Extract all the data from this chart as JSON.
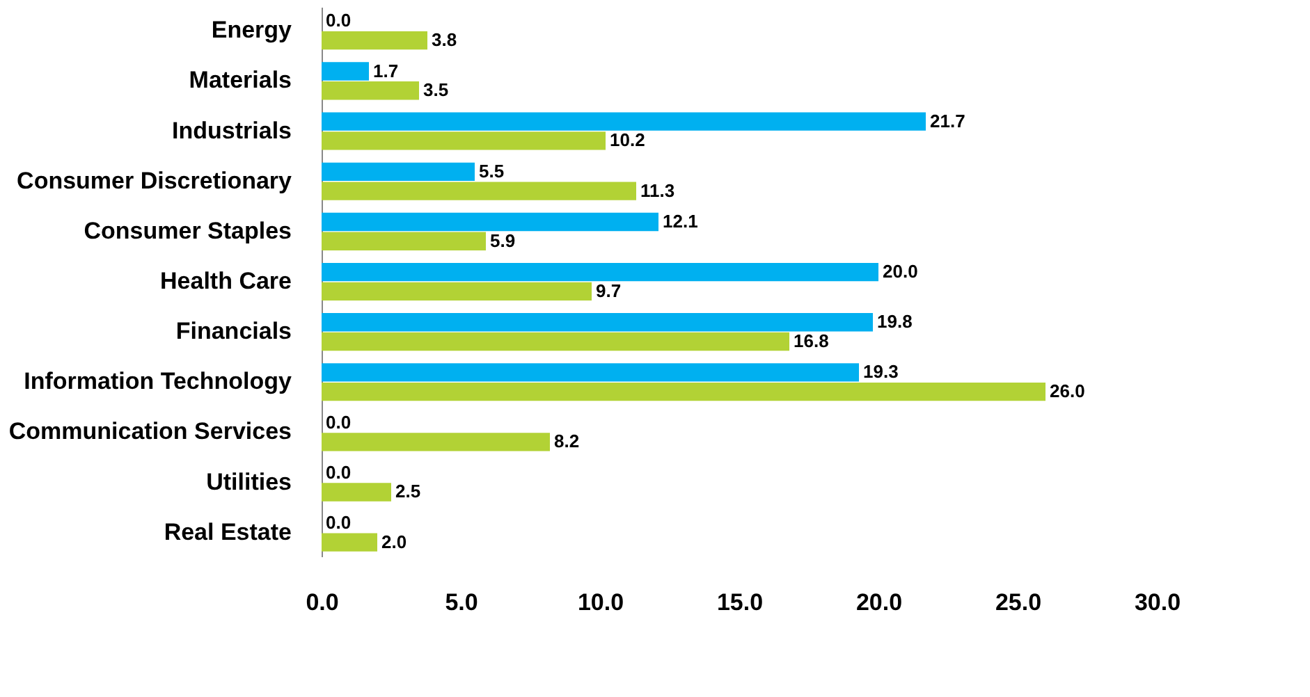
{
  "chart_data": {
    "type": "bar",
    "orientation": "horizontal",
    "categories": [
      "Energy",
      "Materials",
      "Industrials",
      "Consumer Discretionary",
      "Consumer Staples",
      "Health Care",
      "Financials",
      "Information Technology",
      "Communication Services",
      "Utilities",
      "Real Estate"
    ],
    "series": [
      {
        "color": "#00b0f0",
        "values": [
          0,
          1.7,
          21.7,
          5.5,
          12.1,
          20.0,
          19.8,
          19.3,
          0,
          0,
          0
        ],
        "value_labels": [
          "0.0",
          "1.7",
          "21.7",
          "5.5",
          "12.1",
          "20.0",
          "19.8",
          "19.3",
          "0.0",
          "0.0",
          "0.0"
        ]
      },
      {
        "color": "#b2d235",
        "values": [
          3.8,
          3.5,
          10.2,
          11.3,
          5.9,
          9.7,
          16.8,
          26.0,
          8.2,
          2.5,
          2.0
        ],
        "value_labels": [
          "3.8",
          "3.5",
          "10.2",
          "11.3",
          "5.9",
          "9.7",
          "16.8",
          "26.0",
          "8.2",
          "2.5",
          "2.0"
        ]
      }
    ],
    "xlim": [
      0,
      30
    ],
    "xticks": [
      {
        "value": 0,
        "label": "0.0"
      },
      {
        "value": 5,
        "label": "5.0"
      },
      {
        "value": 10,
        "label": "10.0"
      },
      {
        "value": 15,
        "label": "15.0"
      },
      {
        "value": 20,
        "label": "20.0"
      },
      {
        "value": 25,
        "label": "25.0"
      },
      {
        "value": 30,
        "label": "30.0"
      }
    ],
    "grid": false
  }
}
